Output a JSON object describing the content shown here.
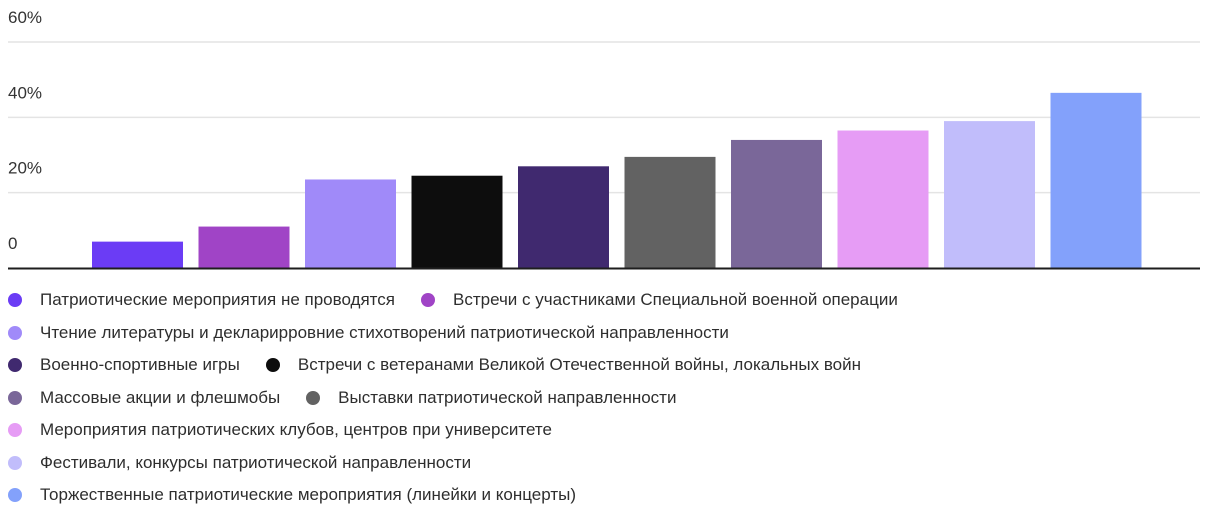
{
  "chart_data": {
    "type": "bar",
    "yticks": [
      "0",
      "20%",
      "40%",
      "60%"
    ],
    "ylim": [
      0,
      60
    ],
    "grid": true,
    "legend_position": "bottom",
    "series": [
      {
        "name": "Патриотические мероприятия не проводятся",
        "value": 7,
        "color": "#6b3cf5"
      },
      {
        "name": "Встречи с участниками Специальной военной операции",
        "value": 11,
        "color": "#a044c6"
      },
      {
        "name": "Чтение литературы и декларирровние стихотворений патриотической направленности",
        "value": 23.5,
        "color": "#a08af9"
      },
      {
        "name": "Военно-спортивные игры",
        "value": 27,
        "color": "#40296f"
      },
      {
        "name": "Встречи с ветеранами Великой Отечественной войны, локальных войн",
        "value": 24.5,
        "color": "#0d0d0d"
      },
      {
        "name": "Массовые акции и флешмобы",
        "value": 34,
        "color": "#7a6799"
      },
      {
        "name": "Выставки патриотической направленности",
        "value": 29.5,
        "color": "#626262"
      },
      {
        "name": "Мероприятия патриотических клубов, центров при университете",
        "value": 36.5,
        "color": "#e69cf5"
      },
      {
        "name": "Фестивали, конкурсы патриотической направленности",
        "value": 39,
        "color": "#c1bdfb"
      },
      {
        "name": "Торжественные патриотические мероприятия (линейки и концерты)",
        "value": 46.5,
        "color": "#83a1fb"
      }
    ],
    "bar_order": [
      0,
      1,
      2,
      4,
      3,
      6,
      5,
      7,
      8,
      9
    ],
    "legend_rows": [
      [
        0,
        1
      ],
      [
        2
      ],
      [
        3,
        4
      ],
      [
        5,
        6
      ],
      [
        7
      ],
      [
        8
      ],
      [
        9
      ]
    ]
  }
}
